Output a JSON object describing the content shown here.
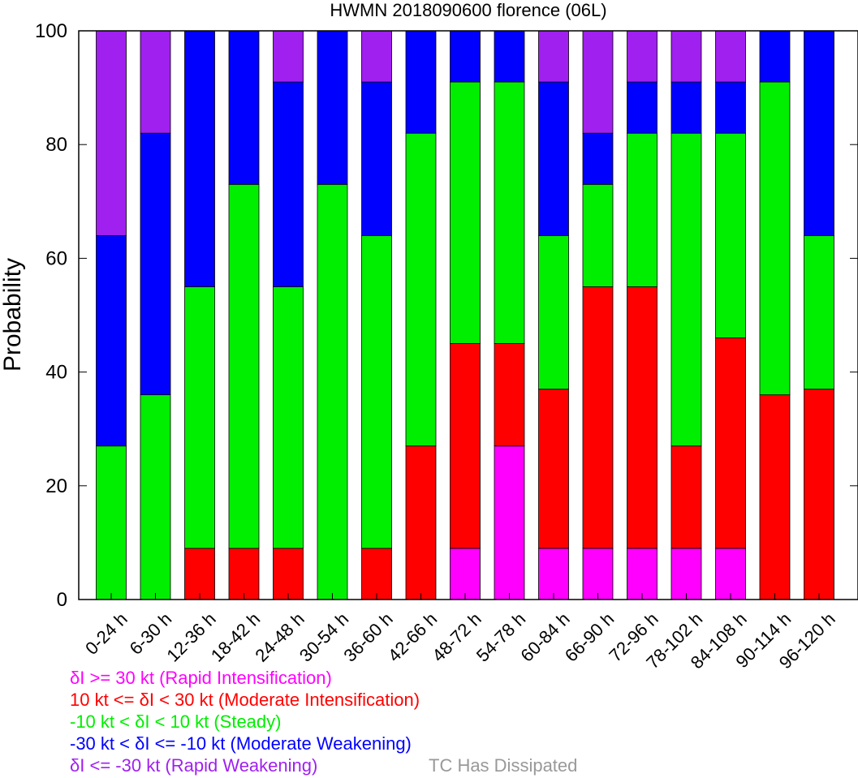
{
  "chart_data": {
    "type": "bar",
    "stacked": true,
    "title": "HWMN 2018090600 florence (06L)",
    "ylabel": "Probability",
    "xlabel": "",
    "ylim": [
      0,
      100
    ],
    "yticks": [
      0,
      20,
      40,
      60,
      80,
      100
    ],
    "grid": false,
    "legend_position": "bottom",
    "categories": [
      "0-24 h",
      "6-30 h",
      "12-36 h",
      "18-42 h",
      "24-48 h",
      "30-54 h",
      "36-60 h",
      "42-66 h",
      "48-72 h",
      "54-78 h",
      "60-84 h",
      "66-90 h",
      "72-96 h",
      "78-102 h",
      "84-108 h",
      "90-114 h",
      "96-120 h"
    ],
    "series": [
      {
        "name": "δI >= 30 kt (Rapid Intensification)",
        "color": "#ff00ff",
        "values": [
          0,
          0,
          0,
          0,
          0,
          0,
          0,
          0,
          9,
          27,
          9,
          9,
          9,
          9,
          9,
          0,
          0
        ]
      },
      {
        "name": "10 kt <= δI < 30 kt (Moderate Intensification)",
        "color": "#ff0000",
        "values": [
          0,
          0,
          9,
          9,
          9,
          0,
          9,
          27,
          36,
          18,
          28,
          46,
          46,
          18,
          37,
          36,
          37
        ]
      },
      {
        "name": "-10 kt < δI < 10 kt (Steady)",
        "color": "#00ee00",
        "values": [
          27,
          36,
          46,
          64,
          46,
          73,
          55,
          55,
          46,
          46,
          27,
          18,
          27,
          55,
          36,
          55,
          27
        ]
      },
      {
        "name": "-30 kt < δI <= -10 kt (Moderate Weakening)",
        "color": "#0000ff",
        "values": [
          37,
          46,
          45,
          27,
          36,
          27,
          27,
          18,
          9,
          9,
          27,
          9,
          9,
          9,
          9,
          9,
          36
        ]
      },
      {
        "name": "δI <= -30 kt (Rapid Weakening)",
        "color": "#a020f0",
        "values": [
          36,
          18,
          0,
          0,
          9,
          0,
          9,
          0,
          0,
          0,
          9,
          18,
          9,
          9,
          9,
          0,
          0
        ]
      }
    ],
    "annotation": {
      "text": "TC Has Dissipated",
      "color": "#999999"
    }
  }
}
